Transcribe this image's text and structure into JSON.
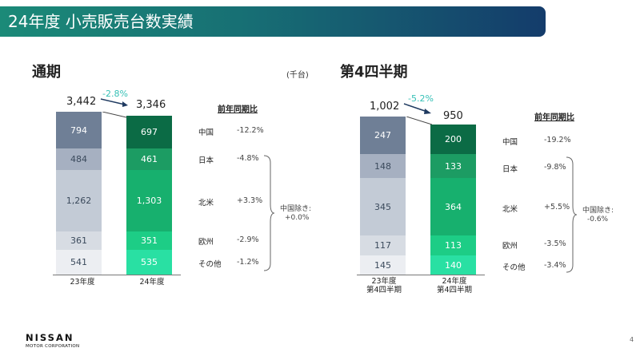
{
  "header": {
    "title": "24年度 小売販売台数実績"
  },
  "unit": "(千台)",
  "left": {
    "title": "通期",
    "total_prev": "3,442",
    "total_curr": "3,346",
    "change_pct": "-2.8%",
    "cmp_header": "前年同期比",
    "prev_label": "23年度",
    "curr_label": "24年度",
    "segments": [
      {
        "region": "中国",
        "prev": "794",
        "curr": "697",
        "yoy": "-12.2%"
      },
      {
        "region": "日本",
        "prev": "484",
        "curr": "461",
        "yoy": "-4.8%"
      },
      {
        "region": "北米",
        "prev": "1,262",
        "curr": "1,303",
        "yoy": "+3.3%"
      },
      {
        "region": "欧州",
        "prev": "361",
        "curr": "351",
        "yoy": "-2.9%"
      },
      {
        "region": "その他",
        "prev": "541",
        "curr": "535",
        "yoy": "-1.2%"
      }
    ],
    "excl_china_label": "中国除き:",
    "excl_china_value": "+0.0%"
  },
  "right": {
    "title": "第4四半期",
    "total_prev": "1,002",
    "total_curr": "950",
    "change_pct": "-5.2%",
    "cmp_header": "前年同期比",
    "prev_label_1": "23年度",
    "prev_label_2": "第4四半期",
    "curr_label_1": "24年度",
    "curr_label_2": "第4四半期",
    "segments": [
      {
        "region": "中国",
        "prev": "247",
        "curr": "200",
        "yoy": "-19.2%"
      },
      {
        "region": "日本",
        "prev": "148",
        "curr": "133",
        "yoy": "-9.8%"
      },
      {
        "region": "北米",
        "prev": "345",
        "curr": "364",
        "yoy": "+5.5%"
      },
      {
        "region": "欧州",
        "prev": "117",
        "curr": "113",
        "yoy": "-3.5%"
      },
      {
        "region": "その他",
        "prev": "145",
        "curr": "140",
        "yoy": "-3.4%"
      }
    ],
    "excl_china_label": "中国除き:",
    "excl_china_value": "-0.6%"
  },
  "colors": {
    "prev": [
      "#6f7f96",
      "#a6b0c1",
      "#c3cbd6",
      "#d7dce3",
      "#eceef2"
    ],
    "curr": [
      "#0b6b45",
      "#1c9c63",
      "#17b06e",
      "#1dcd86",
      "#29e0a3"
    ]
  },
  "footer": {
    "brand": "NISSAN",
    "corp": "MOTOR CORPORATION",
    "page": "4"
  }
}
